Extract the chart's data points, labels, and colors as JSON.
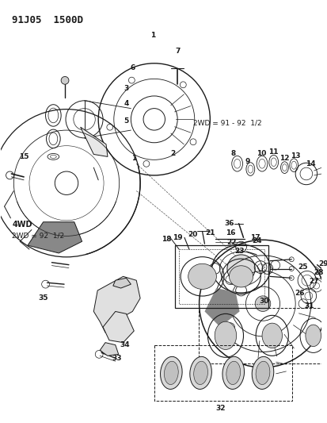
{
  "title": "91J05  1500D",
  "bg_color": "#ffffff",
  "line_color": "#1a1a1a",
  "fig_width": 4.14,
  "fig_height": 5.33,
  "dpi": 100,
  "ref1": "2WD = 91 - 92  1/2",
  "ref2": "4WD",
  "ref3": "2WD = 92  1/2"
}
